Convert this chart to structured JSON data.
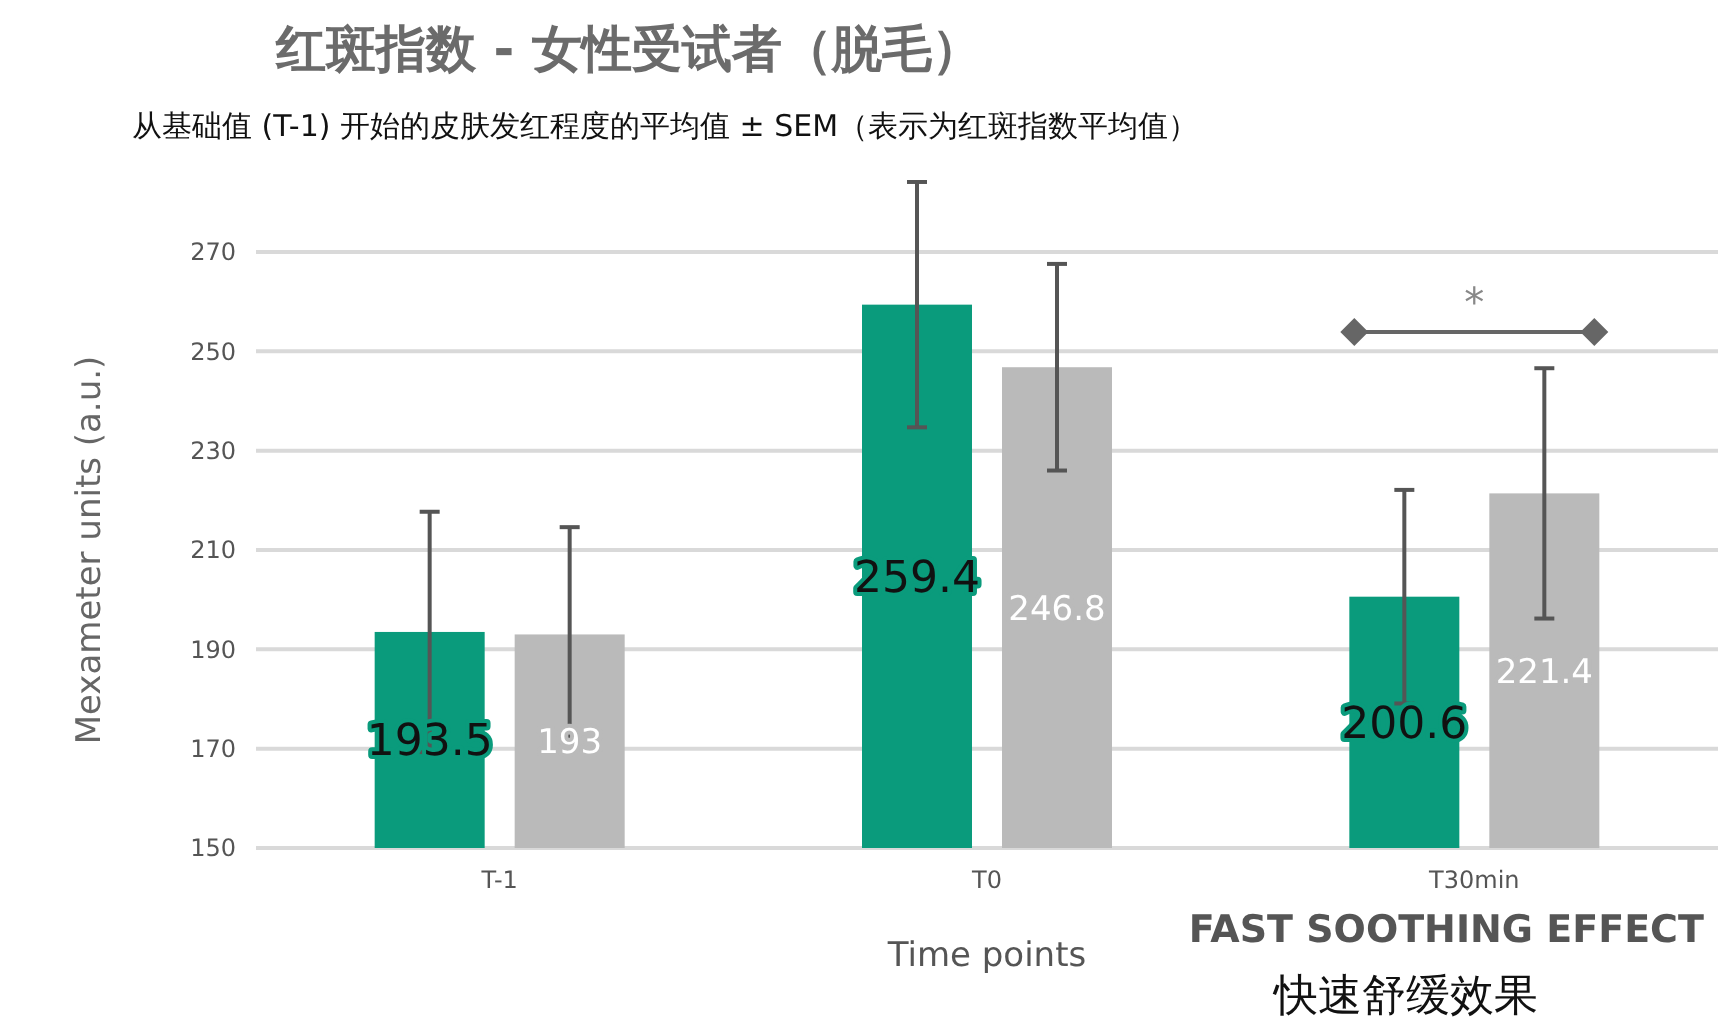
{
  "chart_data": {
    "type": "bar",
    "title": "红斑指数 - 女性受试者（脱毛）",
    "subtitle": "从基础值 (T-1) 开始的皮肤发红程度的平均值 ± SEM（表示为红斑指数平均值）",
    "xlabel": "Time points",
    "ylabel": "Mexameter units (a.u.)",
    "categories": [
      "T-1",
      "T0",
      "T30min"
    ],
    "series": [
      {
        "color": "#0a9b7c",
        "values": [
          193.5,
          259.4,
          200.6
        ],
        "errors": [
          24.2,
          24.7,
          21.5
        ]
      },
      {
        "color": "#bababa",
        "values": [
          193,
          246.8,
          221.4
        ],
        "errors": [
          21.6,
          20.8,
          25.2
        ]
      }
    ],
    "ylim": [
      150,
      270
    ],
    "yticks": [
      150,
      170,
      190,
      210,
      230,
      250,
      270
    ],
    "grid": "y",
    "data_labels": true,
    "annotations": [
      "*",
      "FAST SOOTHING EFFECT",
      "快速舒缓效果"
    ]
  }
}
